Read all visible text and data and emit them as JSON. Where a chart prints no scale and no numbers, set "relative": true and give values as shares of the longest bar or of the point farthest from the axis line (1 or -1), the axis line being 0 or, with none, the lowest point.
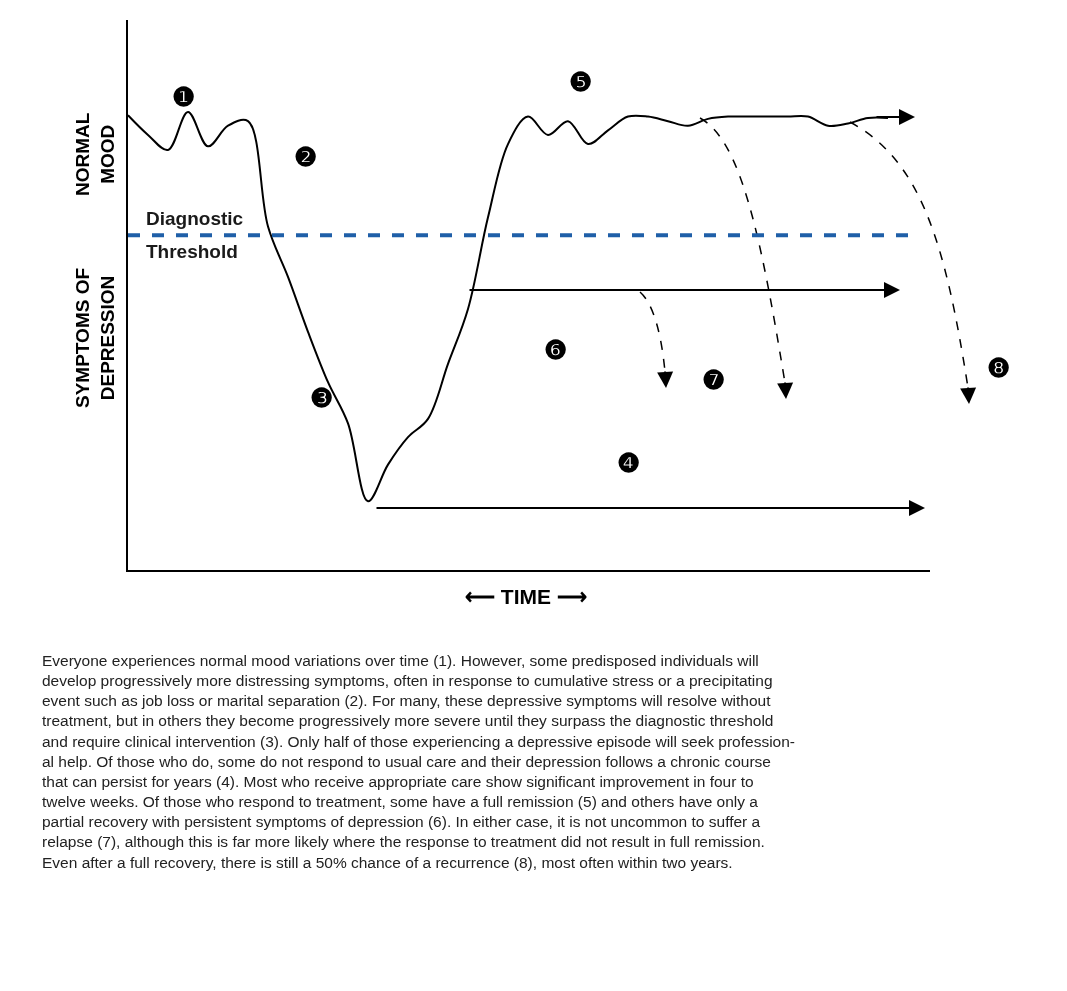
{
  "chart_data": {
    "type": "line",
    "relative": true,
    "xlabel": "⟵ TIME ⟶",
    "ylabel": "SYMPTOMS OF\nDEPRESSION",
    "categories": [
      null,
      null,
      null,
      null,
      null,
      null,
      null,
      null,
      null,
      null,
      null,
      null,
      null,
      null,
      null,
      null,
      null,
      null,
      null,
      null,
      null,
      null,
      null,
      null,
      null,
      null,
      null,
      null,
      null,
      null,
      null,
      null,
      null,
      null,
      null,
      null,
      null,
      null,
      null,
      null
    ],
    "series": [
      {
        "color": "#000000",
        "line_style": "solid",
        "values": [
          0.993,
          0.95,
          0.917,
          1.0,
          0.925,
          0.97,
          0.98,
          0.75,
          0.64,
          0.52,
          0.41,
          0.32,
          0.15,
          0.23,
          0.29,
          0.33,
          0.45,
          0.57,
          0.77,
          0.93,
          0.99,
          0.95,
          0.98,
          0.93,
          0.96,
          0.99,
          0.99,
          0.98,
          0.97,
          0.985,
          0.99,
          0.99,
          0.99,
          0.99,
          0.99,
          0.97,
          0.975,
          0.987,
          0.987,
          null
        ]
      }
    ],
    "ref_lines": [
      {
        "axis": "y",
        "value": 0.731,
        "label": "Diagnostic\nThreshold",
        "color": "#1f5fa8",
        "line_style": "dashed"
      }
    ],
    "annotations": [
      "NORMAL\nMOOD",
      "❶",
      "❷",
      "❸",
      "❹",
      "❺",
      "❻",
      "❼",
      "❽",
      "Everyone experiences normal mood variations over time (1). However, some predisposed individuals will\ndevelop progressively more distressing symptoms, often in response to cumulative stress or a precipitating\nevent such as job loss or marital separation (2). For many, these depressive symptoms will resolve without\ntreatment, but in others they become progressively more severe until they surpass the diagnostic threshold\nand require clinical intervention (3). Only half of those experiencing a depressive episode will seek profession-\nal help. Of those who do, some do not respond to usual care and their depression follows a chronic course\nthat can persist for years (4). Most who receive appropriate care show significant improvement in four to\ntwelve weeks. Of those who respond to treatment, some have a full remission (5) and others have only a\npartial recovery with persistent symptoms of depression (6). In either case, it is not uncommon to suffer a\nrelapse (7), although this is far more likely where the response to treatment did not result in full remission.\nEven after a full recovery, there is still a 50% chance of a recurrence (8), most often within two years."
    ],
    "legend": false
  }
}
